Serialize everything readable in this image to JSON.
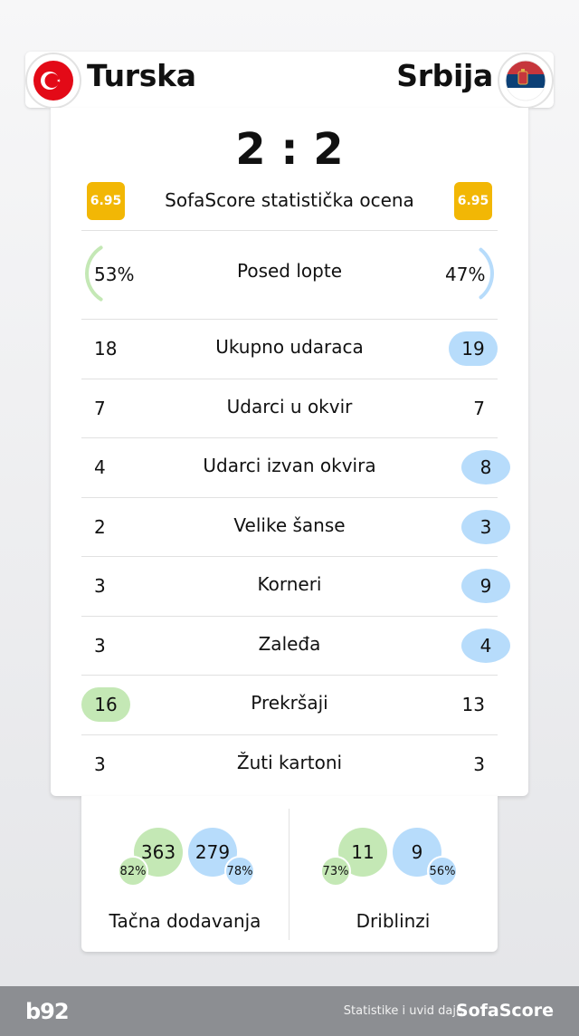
{
  "match": {
    "home_team": "Turska",
    "away_team": "Srbija",
    "score": "2 : 2",
    "home_flag_icon": "turkey-flag-icon",
    "away_flag_icon": "serbia-flag-icon"
  },
  "rating": {
    "home": "6.95",
    "away": "6.95",
    "label": "SofaScore statistička ocena"
  },
  "possession": {
    "label": "Posed lopte",
    "home": "53%",
    "away": "47%",
    "home_fraction": 0.53,
    "away_fraction": 0.47
  },
  "stats": [
    {
      "label": "Ukupno udaraca",
      "home": "18",
      "away": "19",
      "highlight": "away"
    },
    {
      "label": "Udarci u okvir",
      "home": "7",
      "away": "7",
      "highlight": "none"
    },
    {
      "label": "Udarci izvan okvira",
      "home": "4",
      "away": "8",
      "highlight": "away"
    },
    {
      "label": "Velike šanse",
      "home": "2",
      "away": "3",
      "highlight": "away"
    },
    {
      "label": "Korneri",
      "home": "3",
      "away": "9",
      "highlight": "away"
    },
    {
      "label": "Zaleđa",
      "home": "3",
      "away": "4",
      "highlight": "away"
    },
    {
      "label": "Prekršaji",
      "home": "16",
      "away": "13",
      "highlight": "home"
    },
    {
      "label": "Žuti kartoni",
      "home": "3",
      "away": "3",
      "highlight": "none"
    }
  ],
  "passes": {
    "label": "Tačna dodavanja",
    "home_value": "363",
    "home_pct": "82%",
    "away_value": "279",
    "away_pct": "78%"
  },
  "dribbles": {
    "label": "Driblinzi",
    "home_value": "11",
    "home_pct": "73%",
    "away_value": "9",
    "away_pct": "56%"
  },
  "footer": {
    "logo": "b92",
    "credit_text": "Statistike i uvid daje",
    "brand": "SofaScore"
  },
  "colors": {
    "home": "#c4e8b5",
    "away": "#b7dcfb",
    "rating": "#f2b705",
    "footer": "#8c8e92"
  }
}
